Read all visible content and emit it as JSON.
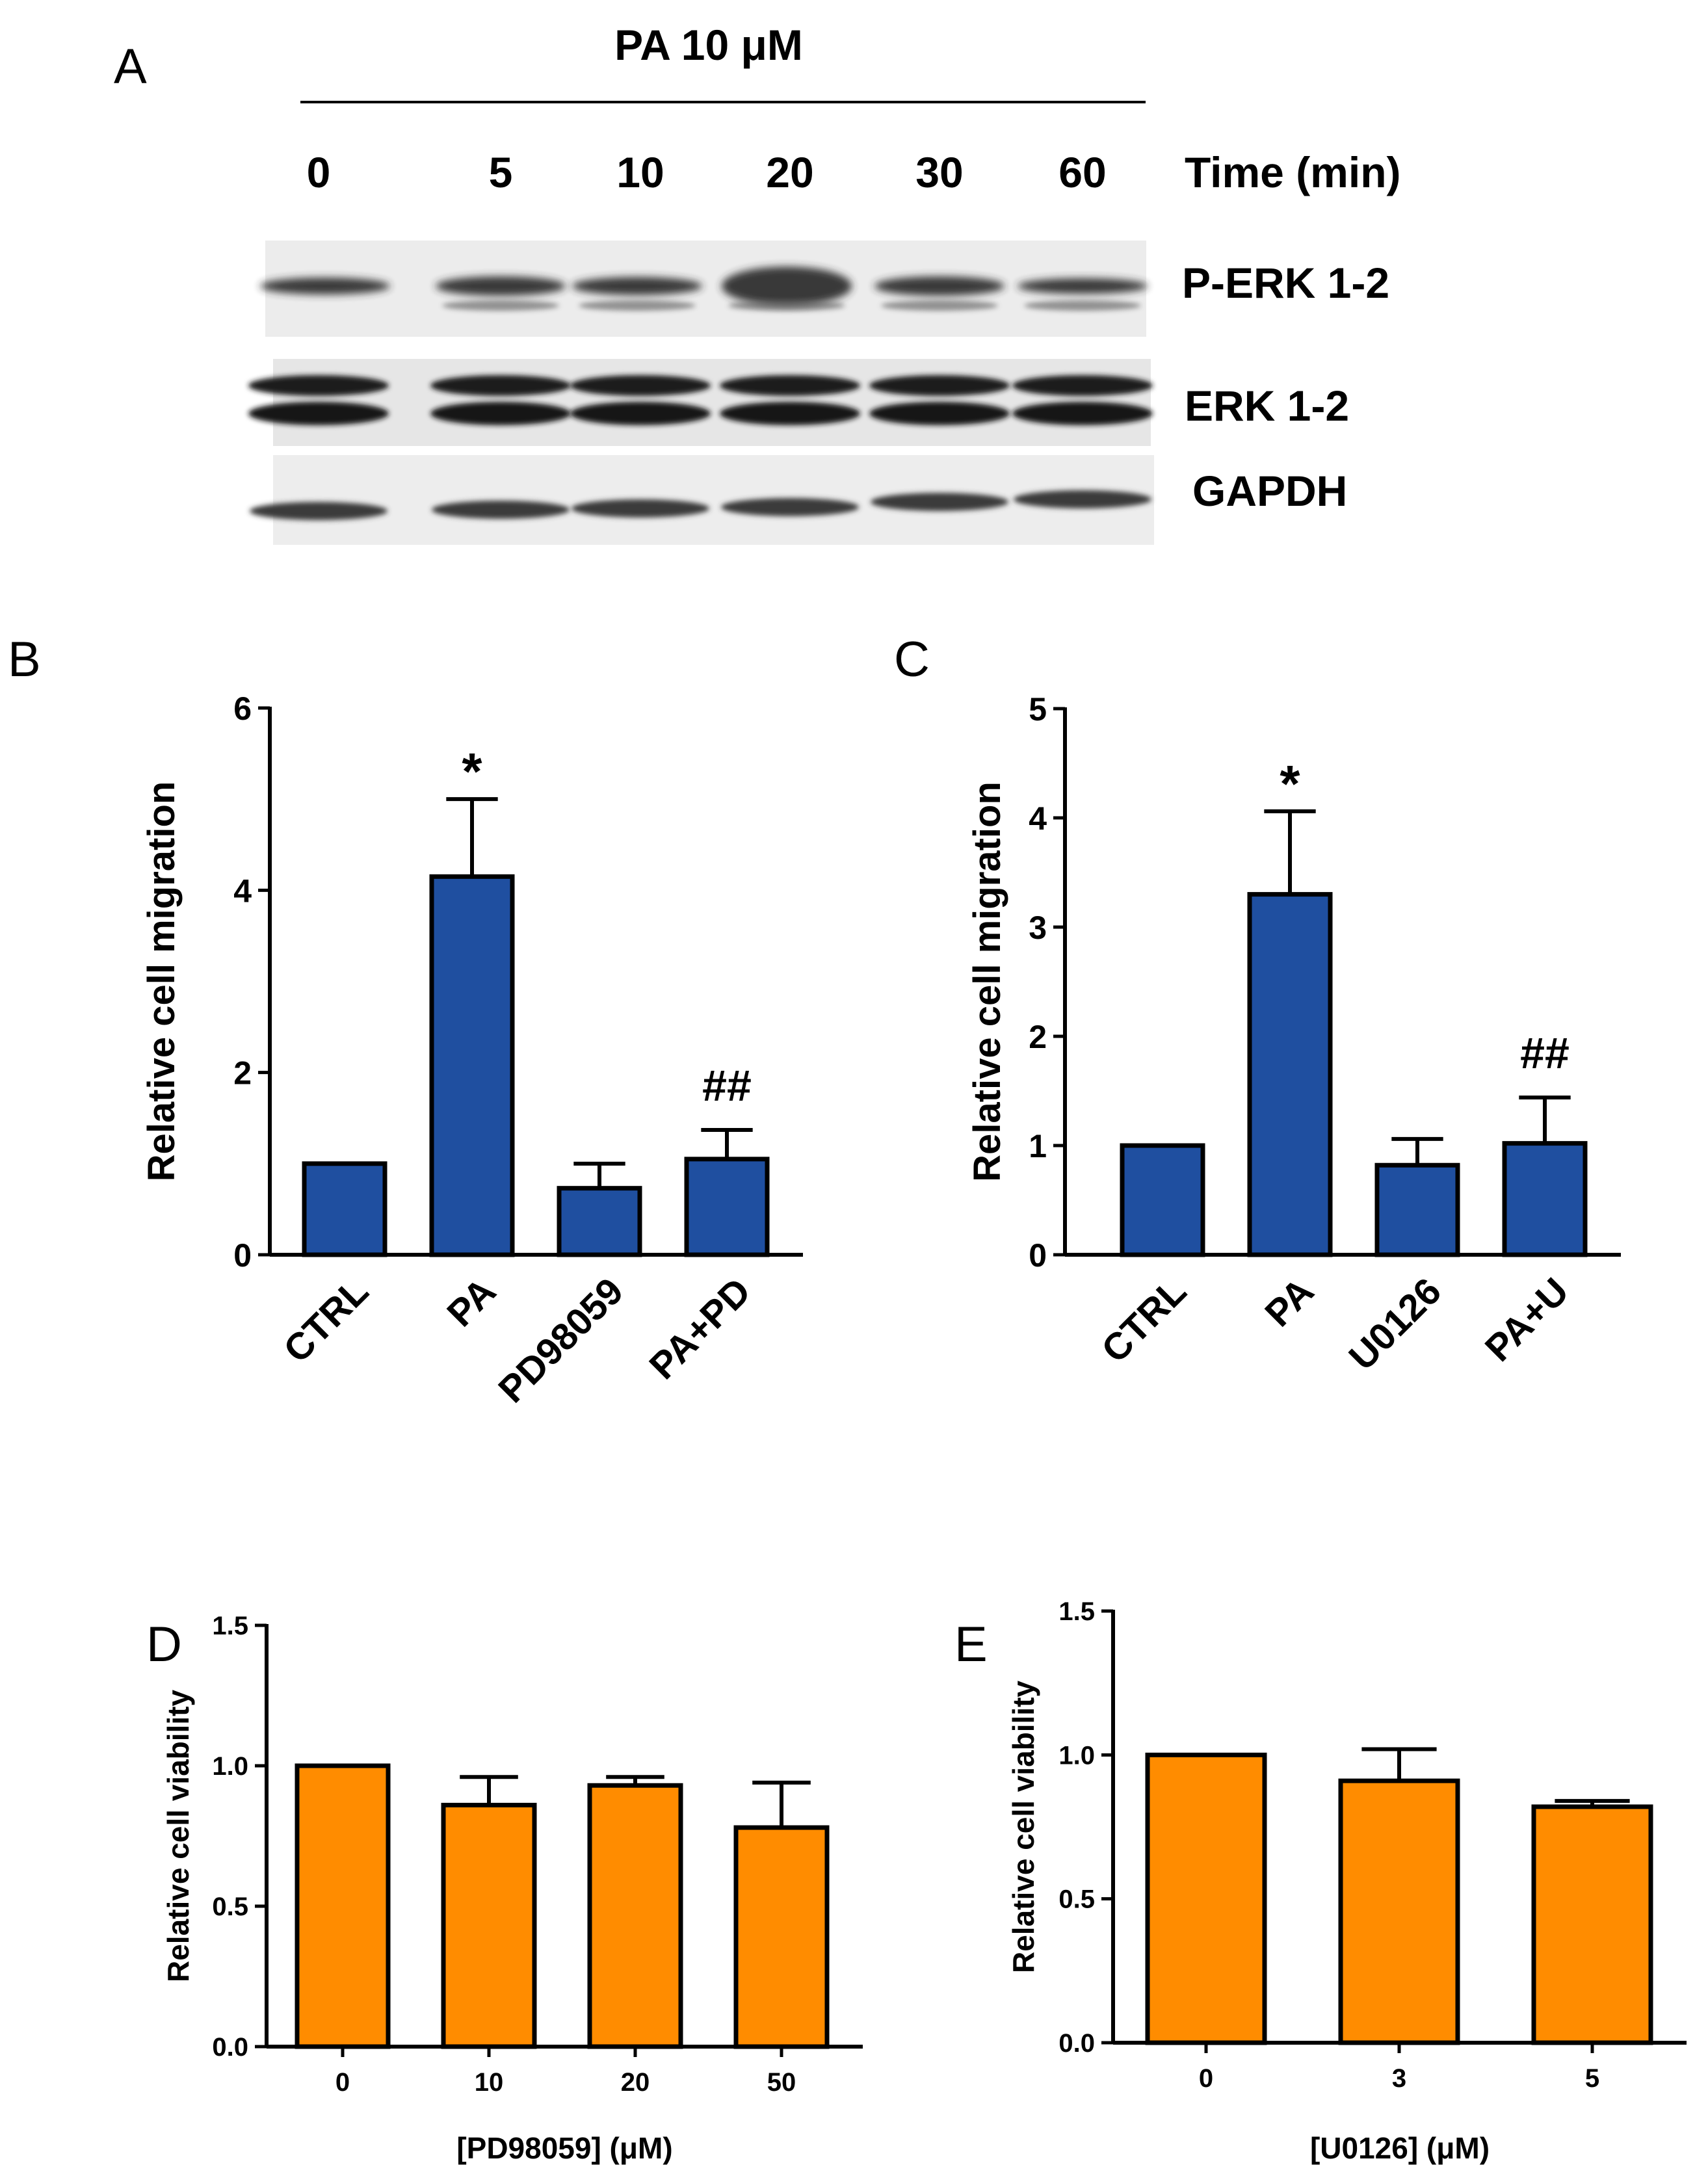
{
  "panels": {
    "A": "A",
    "B": "B",
    "C": "C",
    "D": "D",
    "E": "E"
  },
  "blot": {
    "treatment": "PA 10 μM",
    "time_label": "Time (min)",
    "times": [
      "0",
      "5",
      "10",
      "20",
      "30",
      "60"
    ],
    "rows": [
      "P-ERK 1-2",
      "ERK 1-2",
      "GAPDH"
    ]
  },
  "chart_data": [
    {
      "panel": "B",
      "type": "bar",
      "categories": [
        "CTRL",
        "PA",
        "PD98059",
        "PA+PD"
      ],
      "values": [
        1.0,
        4.15,
        0.73,
        1.05
      ],
      "errors": [
        0,
        0.85,
        0.27,
        0.32
      ],
      "annotations": [
        "",
        "*",
        "",
        "##"
      ],
      "ylabel": "Relative cell migration",
      "xlabel": "",
      "ylim": [
        0,
        6
      ],
      "yticks": [
        "0",
        "2",
        "4",
        "6"
      ],
      "color": "#1f4fa0"
    },
    {
      "panel": "C",
      "type": "bar",
      "categories": [
        "CTRL",
        "PA",
        "U0126",
        "PA+U"
      ],
      "values": [
        1.0,
        3.3,
        0.82,
        1.02
      ],
      "errors": [
        0,
        0.76,
        0.24,
        0.42
      ],
      "annotations": [
        "",
        "*",
        "",
        "##"
      ],
      "ylabel": "Relative cell migration",
      "xlabel": "",
      "ylim": [
        0,
        5
      ],
      "yticks": [
        "0",
        "1",
        "2",
        "3",
        "4",
        "5"
      ],
      "color": "#1f4fa0"
    },
    {
      "panel": "D",
      "type": "bar",
      "categories": [
        "0",
        "10",
        "20",
        "50"
      ],
      "values": [
        1.0,
        0.86,
        0.93,
        0.78
      ],
      "errors": [
        0,
        0.1,
        0.03,
        0.16
      ],
      "annotations": [
        "",
        "",
        "",
        ""
      ],
      "ylabel": "Relative cell viability",
      "xlabel": "[PD98059] (μM)",
      "ylim": [
        0,
        1.5
      ],
      "yticks": [
        "0.0",
        "0.5",
        "1.0",
        "1.5"
      ],
      "color": "#ff8c00"
    },
    {
      "panel": "E",
      "type": "bar",
      "categories": [
        "0",
        "3",
        "5"
      ],
      "values": [
        1.0,
        0.91,
        0.82
      ],
      "errors": [
        0,
        0.11,
        0.02
      ],
      "annotations": [
        "",
        "",
        ""
      ],
      "ylabel": "Relative cell viability",
      "xlabel": "[U0126] (μM)",
      "ylim": [
        0,
        1.5
      ],
      "yticks": [
        "0.0",
        "0.5",
        "1.0",
        "1.5"
      ],
      "color": "#ff8c00"
    }
  ]
}
